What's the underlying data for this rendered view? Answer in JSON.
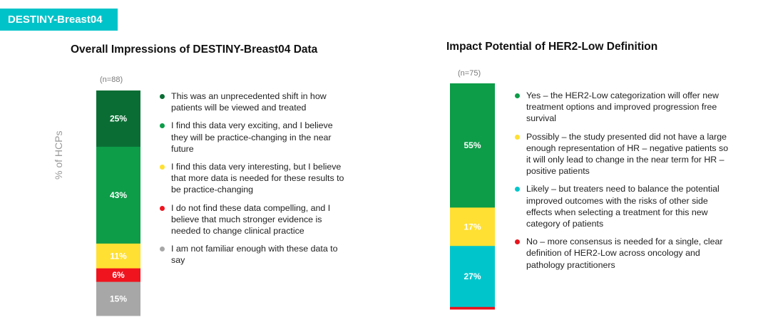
{
  "header": {
    "tag": "DESTINY-Breast04"
  },
  "chart_data": [
    {
      "type": "bar",
      "stacked": true,
      "title": "Overall Impressions of DESTINY-Breast04 Data",
      "n_label": "(n=88)",
      "ylabel": "% of HCPs",
      "categories": [
        "(n=88)"
      ],
      "series": [
        {
          "name": "This was an unprecedented shift in how patients will be viewed and treated",
          "values": [
            25
          ],
          "color": "#0a6e34",
          "label": "25%",
          "label_color": "#ffffff"
        },
        {
          "name": "I find this data very exciting, and I believe they will be practice-changing in the near future",
          "values": [
            43
          ],
          "color": "#0d9c48",
          "label": "43%",
          "label_color": "#ffffff"
        },
        {
          "name": "I find this data very interesting, but I believe that more data is needed for these results to be practice-changing",
          "values": [
            11
          ],
          "color": "#ffe033",
          "label": "11%",
          "label_color": "#ffffff"
        },
        {
          "name": "I do not find these data compelling, and I believe that much stronger evidence is needed to change clinical practice",
          "values": [
            6
          ],
          "color": "#f0141e",
          "label": "6%",
          "label_color": "#ffffff"
        },
        {
          "name": "I am not familiar enough with these data to say",
          "values": [
            15
          ],
          "color": "#a7a7a7",
          "label": "15%",
          "label_color": "#ffffff"
        }
      ]
    },
    {
      "type": "bar",
      "stacked": true,
      "title": "Impact Potential of HER2-Low Definition",
      "n_label": "(n=75)",
      "categories": [
        "(n=75)"
      ],
      "series": [
        {
          "name": "Yes – the HER2-Low categorization will offer new treatment options and improved progression free survival",
          "values": [
            55
          ],
          "color": "#0d9c48",
          "label": "55%",
          "label_color": "#ffffff"
        },
        {
          "name": "Possibly – the study presented did not have a large enough representation of HR – negative patients so it will only lead to change in the near term for HR – positive patients",
          "values": [
            17
          ],
          "color": "#ffe033",
          "label": "17%",
          "label_color": "#ffffff"
        },
        {
          "name": "Likely – but treaters need to balance the potential improved outcomes with the risks of other side effects when selecting a treatment for this new category of patients",
          "values": [
            27
          ],
          "color": "#00c6cc",
          "label": "27%",
          "label_color": "#ffffff"
        },
        {
          "name": "No – more consensus is needed for a single, clear definition of HER2-Low across oncology and pathology practitioners",
          "values": [
            1
          ],
          "color": "#e8141c",
          "label": "",
          "label_color": "#ffffff"
        }
      ]
    }
  ]
}
